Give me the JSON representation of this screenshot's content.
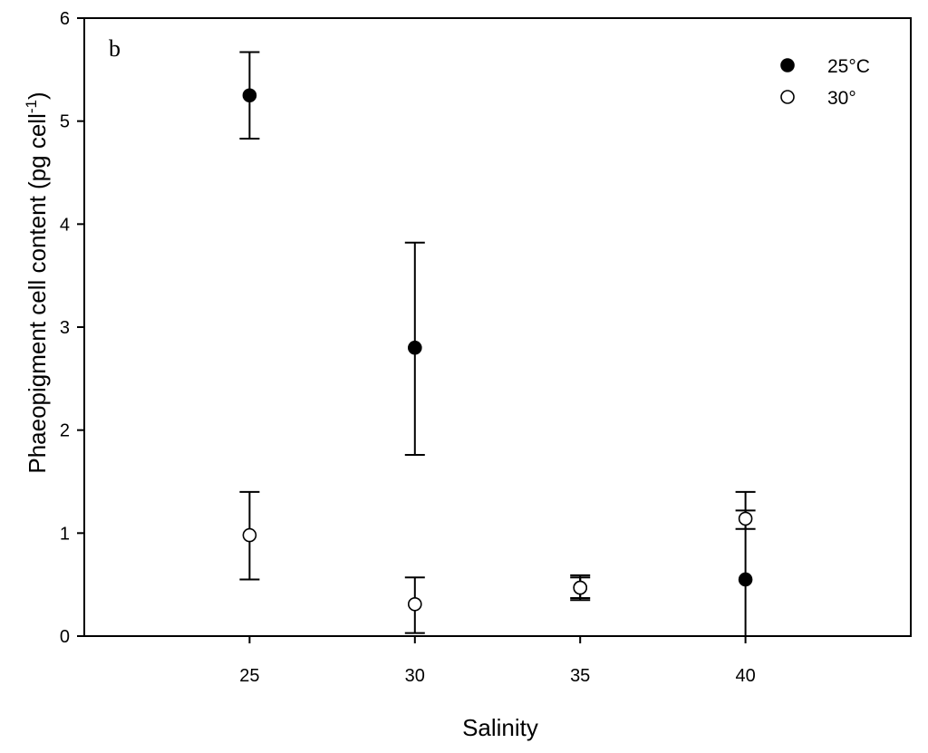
{
  "chart_data": {
    "type": "scatter",
    "panel_label": "b",
    "xlabel": "Salinity",
    "ylabel_main": "Phaeopigment cell content (pg cell",
    "ylabel_sup": "-1",
    "ylabel_close": ")",
    "xlim": [
      20,
      45
    ],
    "ylim": [
      0,
      6
    ],
    "xticks": [
      25,
      30,
      35,
      40
    ],
    "yticks": [
      0,
      1,
      2,
      3,
      4,
      5,
      6
    ],
    "legend_position": "top-right",
    "series": [
      {
        "name": "25°C",
        "marker": "filled-circle",
        "color": "#000000",
        "points": [
          {
            "x": 25,
            "y": 5.25,
            "err_low": 4.83,
            "err_high": 5.67
          },
          {
            "x": 30,
            "y": 2.8,
            "err_low": 1.76,
            "err_high": 3.82
          },
          {
            "x": 35,
            "y": 0.47,
            "err_low": 0.35,
            "err_high": 0.59
          },
          {
            "x": 40,
            "y": 0.55,
            "err_low": 0.0,
            "err_high": 1.22
          }
        ]
      },
      {
        "name": "30°",
        "marker": "open-circle",
        "color": "#000000",
        "points": [
          {
            "x": 25,
            "y": 0.98,
            "err_low": 0.55,
            "err_high": 1.4
          },
          {
            "x": 30,
            "y": 0.31,
            "err_low": 0.03,
            "err_high": 0.57
          },
          {
            "x": 35,
            "y": 0.47,
            "err_low": 0.37,
            "err_high": 0.57
          },
          {
            "x": 40,
            "y": 1.14,
            "err_low": 1.04,
            "err_high": 1.4
          }
        ]
      }
    ]
  }
}
